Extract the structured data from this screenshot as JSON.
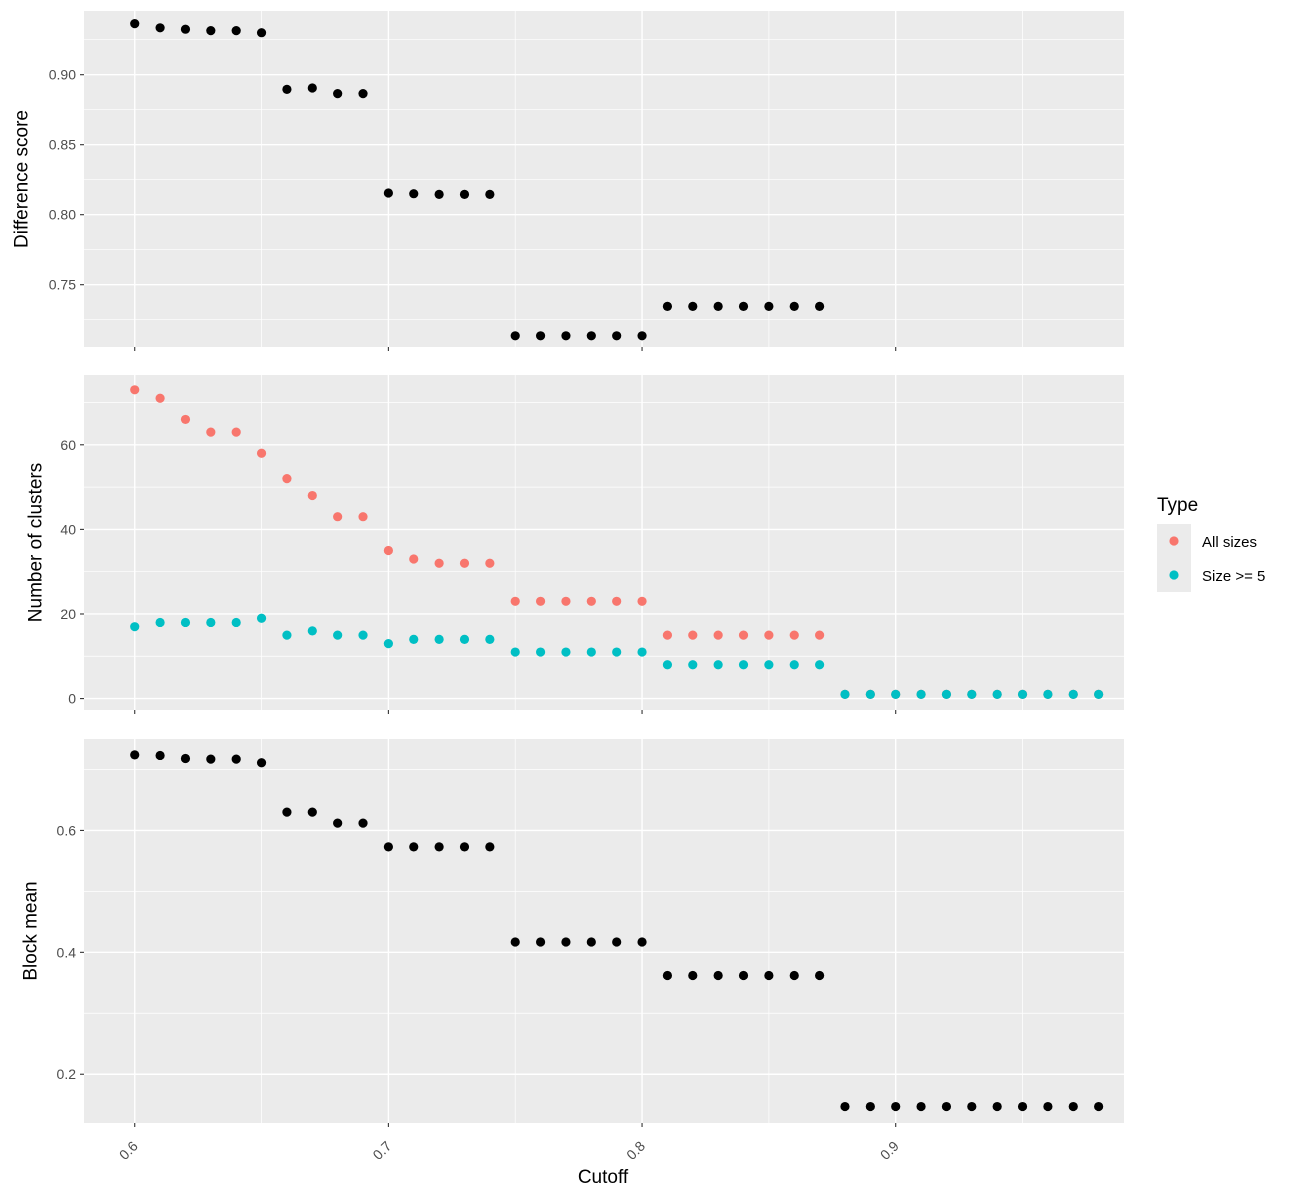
{
  "chart_data": {
    "type": "scatter",
    "xlabel": "Cutoff",
    "xlim": [
      0.58,
      0.99
    ],
    "xticks": [
      0.6,
      0.7,
      0.8,
      0.9
    ],
    "xtick_labels": [
      "0.6",
      "0.7",
      "0.8",
      "0.9"
    ],
    "x": [
      0.6,
      0.61,
      0.62,
      0.63,
      0.64,
      0.65,
      0.66,
      0.67,
      0.68,
      0.69,
      0.7,
      0.71,
      0.72,
      0.73,
      0.74,
      0.75,
      0.76,
      0.77,
      0.78,
      0.79,
      0.8,
      0.81,
      0.82,
      0.83,
      0.84,
      0.85,
      0.86,
      0.87,
      0.88,
      0.89,
      0.9,
      0.91,
      0.92,
      0.93,
      0.94,
      0.95,
      0.96,
      0.97,
      0.98
    ],
    "grid": true,
    "panels": [
      {
        "ylabel": "Difference score",
        "ylim": [
          0.7055,
          0.9455
        ],
        "yticks": [
          0.75,
          0.8,
          0.85,
          0.9
        ],
        "ytick_labels": [
          "0.75",
          "0.80",
          "0.85",
          "0.90"
        ],
        "series": [
          {
            "color": "#000000",
            "values": [
              0.9365,
              0.9335,
              0.9325,
              0.9315,
              0.9315,
              0.93,
              0.8895,
              0.8905,
              0.8865,
              0.8865,
              0.8155,
              0.815,
              0.8145,
              0.8145,
              0.8145,
              0.7135,
              0.7135,
              0.7135,
              0.7135,
              0.7135,
              0.7135,
              0.7345,
              0.7345,
              0.7345,
              0.7345,
              0.7345,
              0.7345,
              0.7345,
              null,
              null,
              null,
              null,
              null,
              null,
              null,
              null,
              null,
              null,
              null
            ]
          }
        ]
      },
      {
        "ylabel": "Number of clusters",
        "ylim": [
          -2.7,
          76.5
        ],
        "yticks": [
          0,
          20,
          40,
          60
        ],
        "ytick_labels": [
          "0",
          "20",
          "40",
          "60"
        ],
        "series": [
          {
            "name": "All sizes",
            "color": "#F8766D",
            "values": [
              73,
              71,
              66,
              63,
              63,
              58,
              52,
              48,
              43,
              43,
              35,
              33,
              32,
              32,
              32,
              23,
              23,
              23,
              23,
              23,
              23,
              15,
              15,
              15,
              15,
              15,
              15,
              15,
              1,
              1,
              1,
              1,
              1,
              1,
              1,
              1,
              1,
              1,
              1
            ]
          },
          {
            "name": "Size >= 5",
            "color": "#00BFC4",
            "values": [
              17,
              18,
              18,
              18,
              18,
              19,
              15,
              16,
              15,
              15,
              13,
              14,
              14,
              14,
              14,
              11,
              11,
              11,
              11,
              11,
              11,
              8,
              8,
              8,
              8,
              8,
              8,
              8,
              1,
              1,
              1,
              1,
              1,
              1,
              1,
              1,
              1,
              1,
              1
            ]
          }
        ]
      },
      {
        "ylabel": "Block mean",
        "ylim": [
          0.12,
          0.75
        ],
        "yticks": [
          0.2,
          0.4,
          0.6
        ],
        "ytick_labels": [
          "0.2",
          "0.4",
          "0.6"
        ],
        "series": [
          {
            "color": "#000000",
            "values": [
              0.724,
              0.723,
              0.718,
              0.717,
              0.717,
              0.711,
              0.63,
              0.63,
              0.612,
              0.612,
              0.573,
              0.573,
              0.573,
              0.573,
              0.573,
              0.417,
              0.417,
              0.417,
              0.417,
              0.417,
              0.417,
              0.362,
              0.362,
              0.362,
              0.362,
              0.362,
              0.362,
              0.362,
              0.147,
              0.147,
              0.147,
              0.147,
              0.147,
              0.147,
              0.147,
              0.147,
              0.147,
              0.147,
              0.147
            ]
          }
        ]
      }
    ],
    "legend": {
      "title": "Type",
      "placement": "right",
      "entries": [
        {
          "label": "All sizes",
          "color": "#F8766D"
        },
        {
          "label": "Size >= 5",
          "color": "#00BFC4"
        }
      ]
    }
  }
}
